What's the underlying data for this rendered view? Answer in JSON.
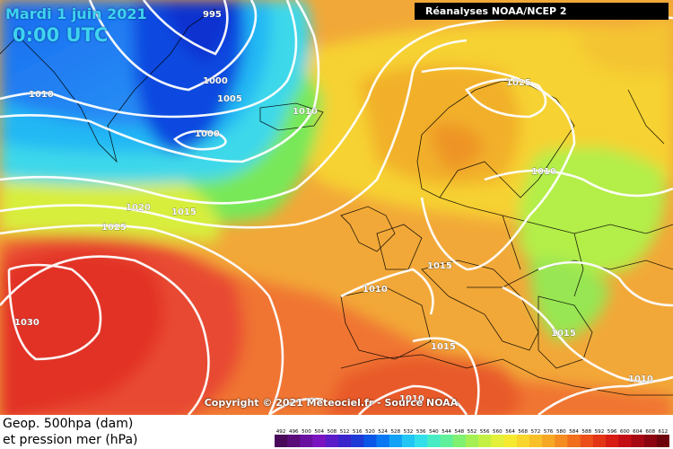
{
  "map": {
    "date": "Mardi 1 juin 2021",
    "time": "0:00 UTC",
    "source": "Réanalyses NOAA/NCEP 2",
    "copyright": "Copyright © 2021 Meteociel.fr - Source NOAA",
    "legend_line1": "Geop. 500hpa (dam)",
    "legend_line2": "et pression mer (hPa)",
    "isobar_labels": [
      {
        "text": "995"
      },
      {
        "text": "1000"
      },
      {
        "text": "1005"
      },
      {
        "text": "1000"
      },
      {
        "text": "1010"
      },
      {
        "text": "1010"
      },
      {
        "text": "1010"
      },
      {
        "text": "1025"
      },
      {
        "text": "1020"
      },
      {
        "text": "1015"
      },
      {
        "text": "1025"
      },
      {
        "text": "1030"
      },
      {
        "text": "1015"
      },
      {
        "text": "1010"
      },
      {
        "text": "1020"
      },
      {
        "text": "1015"
      },
      {
        "text": "1015"
      },
      {
        "text": "1010"
      },
      {
        "text": "1010"
      }
    ],
    "scale": {
      "labels": [
        "492",
        "496",
        "500",
        "504",
        "508",
        "512",
        "516",
        "520",
        "524",
        "528",
        "532",
        "536",
        "540",
        "544",
        "548",
        "552",
        "556",
        "560",
        "564",
        "568",
        "572",
        "576",
        "580",
        "584",
        "588",
        "592",
        "596",
        "600",
        "604",
        "608",
        "612"
      ],
      "colors": [
        "#4a0a5a",
        "#5a0c78",
        "#6a10a0",
        "#7a14c0",
        "#5a1cc8",
        "#3a24cc",
        "#1e3ad6",
        "#0a56e6",
        "#0a78f2",
        "#12a2f6",
        "#22c6f4",
        "#33e0ea",
        "#48ecc4",
        "#60f09a",
        "#80f070",
        "#a4f054",
        "#c4f044",
        "#e2f03a",
        "#f6ea30",
        "#f8d62c",
        "#f8c028",
        "#f6a824",
        "#f48c20",
        "#f06e1c",
        "#ec5018",
        "#e43416",
        "#d81c14",
        "#c40c14",
        "#a80814",
        "#8c0410",
        "#6e020c"
      ]
    }
  }
}
